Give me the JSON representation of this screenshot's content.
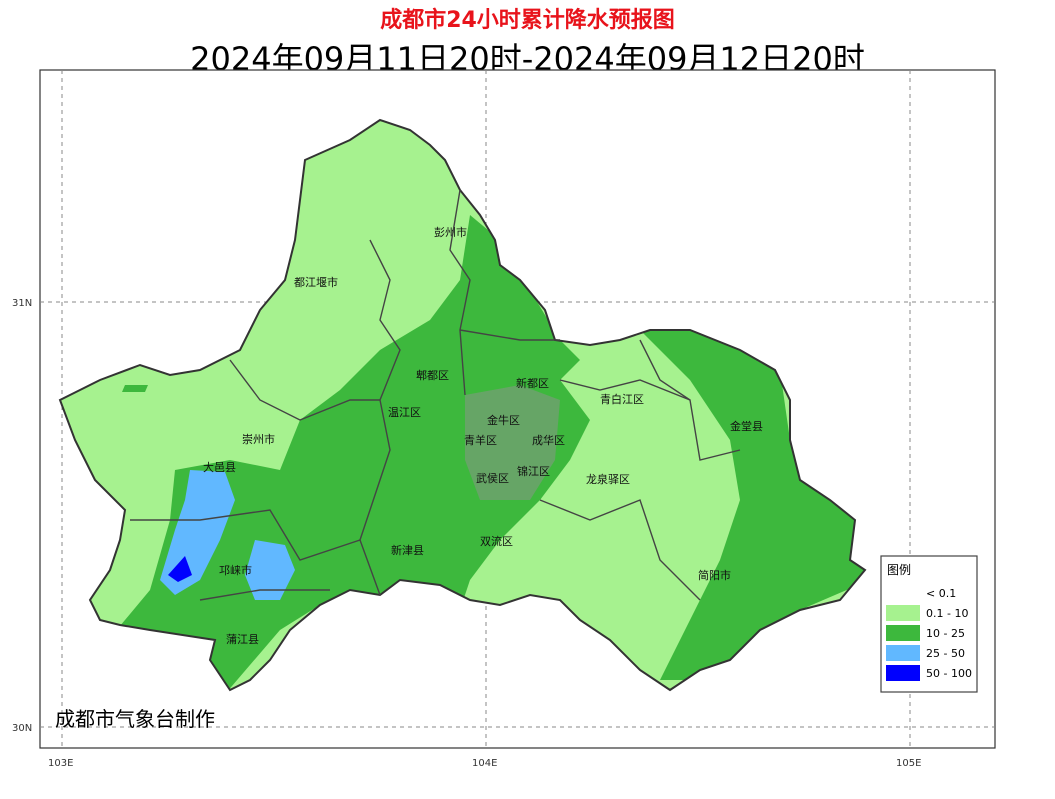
{
  "title": "成都市24小时累计降水预报图",
  "subtitle": "2024年09月11日20时-2024年09月12日20时",
  "credit": "成都市气象台制作",
  "axes": {
    "x_ticks": [
      "103E",
      "104E",
      "105E"
    ],
    "y_ticks": [
      "31N",
      "30N"
    ]
  },
  "districts": [
    "彭州市",
    "都江堰市",
    "郫都区",
    "新都区",
    "青白江区",
    "温江区",
    "金牛区",
    "青羊区",
    "成华区",
    "金堂县",
    "崇州市",
    "武侯区",
    "锦江区",
    "龙泉驿区",
    "大邑县",
    "新津县",
    "双流区",
    "邛崃市",
    "简阳市",
    "蒲江县"
  ],
  "legend": {
    "title": "图例",
    "items": [
      {
        "label": "< 0.1",
        "color": "#ffffff"
      },
      {
        "label": "0.1 - 10",
        "color": "#a6f28f"
      },
      {
        "label": "10 - 25",
        "color": "#3db83d"
      },
      {
        "label": "25 - 50",
        "color": "#61b8ff"
      },
      {
        "label": "50 - 100",
        "color": "#0000fe"
      }
    ]
  }
}
